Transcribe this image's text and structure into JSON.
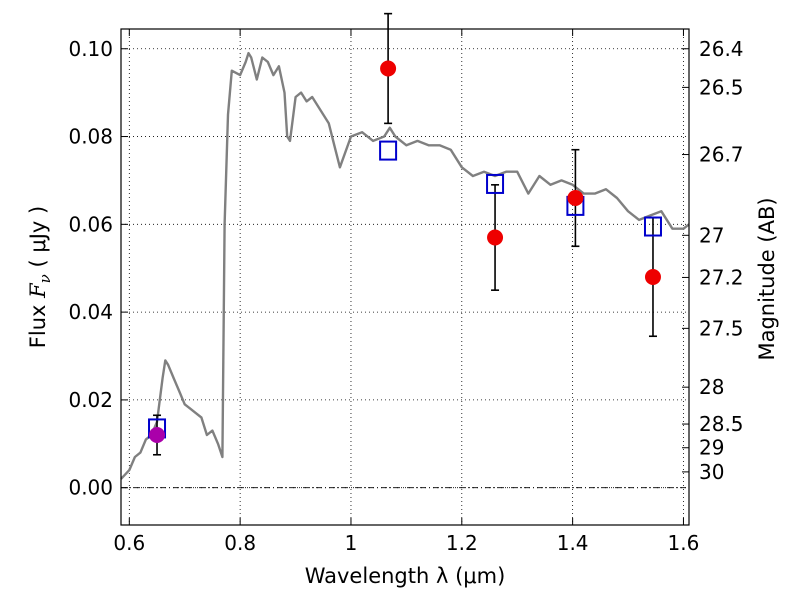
{
  "chart_data": {
    "type": "line",
    "xlabel": "Wavelength  λ (μm)",
    "ylabel": "Flux  F_ν ( μJy )",
    "y2label": "Magnitude (AB)",
    "xlim": [
      0.585,
      1.61
    ],
    "ylim": [
      -0.0085,
      0.1045
    ],
    "grid": true,
    "x_ticks": [
      0.6,
      0.8,
      1.0,
      1.2,
      1.4,
      1.6
    ],
    "x_tick_labels": [
      "0.6",
      "0.8",
      "1",
      "1.2",
      "1.4",
      "1.6"
    ],
    "y_ticks": [
      0.0,
      0.02,
      0.04,
      0.06,
      0.08,
      0.1
    ],
    "y_tick_labels": [
      "0.00",
      "0.02",
      "0.04",
      "0.06",
      "0.08",
      "0.10"
    ],
    "y2_ticks": [
      {
        "label": "26.4",
        "flux": 0.1
      },
      {
        "label": "26.5",
        "flux": 0.0912
      },
      {
        "label": "26.7",
        "flux": 0.0759
      },
      {
        "label": "27",
        "flux": 0.0575
      },
      {
        "label": "27.2",
        "flux": 0.0479
      },
      {
        "label": "27.5",
        "flux": 0.0363
      },
      {
        "label": "28",
        "flux": 0.0229
      },
      {
        "label": "28.5",
        "flux": 0.0145
      },
      {
        "label": "29",
        "flux": 0.0091
      },
      {
        "label": "30",
        "flux": 0.0036
      }
    ],
    "colors": {
      "model": "#808080",
      "synthetic": "#0000cc",
      "observed": "#ee0000",
      "observed_first": "#aa00aa",
      "errorbar": "#000000"
    },
    "series": [
      {
        "type": "line",
        "x": [
          0.585,
          0.6,
          0.61,
          0.62,
          0.63,
          0.64,
          0.65,
          0.655,
          0.66,
          0.665,
          0.67,
          0.68,
          0.69,
          0.7,
          0.71,
          0.72,
          0.73,
          0.74,
          0.75,
          0.76,
          0.768,
          0.772,
          0.778,
          0.785,
          0.8,
          0.81,
          0.815,
          0.82,
          0.83,
          0.84,
          0.85,
          0.86,
          0.87,
          0.88,
          0.885,
          0.89,
          0.9,
          0.91,
          0.92,
          0.93,
          0.94,
          0.95,
          0.96,
          0.97,
          0.98,
          1.0,
          1.02,
          1.04,
          1.06,
          1.07,
          1.08,
          1.1,
          1.12,
          1.14,
          1.16,
          1.18,
          1.2,
          1.22,
          1.24,
          1.26,
          1.28,
          1.3,
          1.32,
          1.34,
          1.36,
          1.38,
          1.4,
          1.42,
          1.44,
          1.46,
          1.48,
          1.5,
          1.52,
          1.54,
          1.56,
          1.58,
          1.6,
          1.61
        ],
        "y": [
          0.002,
          0.004,
          0.007,
          0.008,
          0.011,
          0.012,
          0.015,
          0.02,
          0.025,
          0.029,
          0.028,
          0.025,
          0.022,
          0.019,
          0.018,
          0.017,
          0.016,
          0.012,
          0.013,
          0.01,
          0.007,
          0.06,
          0.085,
          0.095,
          0.094,
          0.097,
          0.099,
          0.098,
          0.093,
          0.098,
          0.097,
          0.094,
          0.096,
          0.09,
          0.08,
          0.079,
          0.089,
          0.09,
          0.088,
          0.089,
          0.087,
          0.085,
          0.083,
          0.078,
          0.073,
          0.08,
          0.081,
          0.079,
          0.08,
          0.082,
          0.08,
          0.078,
          0.079,
          0.078,
          0.078,
          0.077,
          0.073,
          0.071,
          0.072,
          0.071,
          0.072,
          0.072,
          0.067,
          0.071,
          0.069,
          0.07,
          0.069,
          0.067,
          0.067,
          0.068,
          0.066,
          0.063,
          0.061,
          0.062,
          0.063,
          0.059,
          0.059,
          0.06
        ]
      },
      {
        "type": "scatter",
        "marker": "open-square",
        "x": [
          0.65,
          1.067,
          1.26,
          1.405,
          1.545
        ],
        "y": [
          0.0135,
          0.0768,
          0.0692,
          0.0642,
          0.0595
        ]
      },
      {
        "type": "scatter",
        "marker": "filled-circle",
        "x": [
          0.65,
          1.067,
          1.26,
          1.405,
          1.545
        ],
        "y": [
          0.012,
          0.0955,
          0.057,
          0.066,
          0.048
        ],
        "y_err_low": [
          0.0045,
          0.0125,
          0.012,
          0.011,
          0.0135
        ],
        "y_err_high": [
          0.0045,
          0.0125,
          0.012,
          0.011,
          0.0135
        ]
      }
    ]
  }
}
